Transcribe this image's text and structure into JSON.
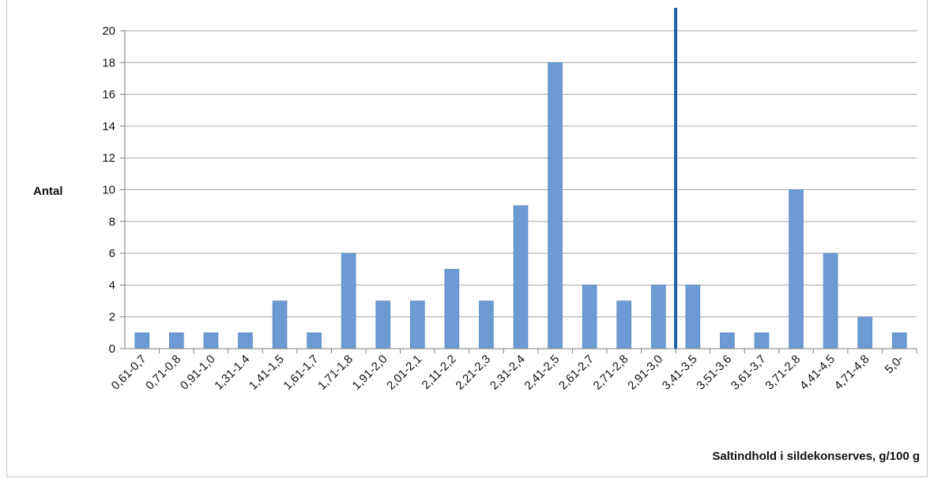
{
  "chart_data": {
    "type": "bar",
    "title": "",
    "xlabel": "Saltindhold i sildekonserves, g/100 g",
    "ylabel": "Antal",
    "ylim": [
      0,
      20
    ],
    "yticks": [
      0,
      2,
      4,
      6,
      8,
      10,
      12,
      14,
      16,
      18,
      20
    ],
    "grid": true,
    "legend": "none",
    "categories": [
      "0,61-0,7",
      "0,71-0,8",
      "0,91-1,0",
      "1,31-1.4",
      "1,41-1,5",
      "1,61-1,7",
      "1,71-1,8",
      "1,91-2,0",
      "2,01-2,1",
      "2,11-2,2",
      "2,21-2,3",
      "2,31-2,4",
      "2,41-2,5",
      "2,61-2,7",
      "2,71-2,8",
      "2,91-3,0",
      "3,41-3,5",
      "3,51-3,6",
      "3,61-3,7",
      "3,71-2,8",
      "4,41-4,5",
      "4,71-4,8",
      "5,0-"
    ],
    "values": [
      1,
      1,
      1,
      1,
      3,
      1,
      6,
      3,
      3,
      5,
      3,
      9,
      18,
      4,
      3,
      4,
      4,
      1,
      1,
      10,
      6,
      2,
      1
    ],
    "reference_line": {
      "after_category": "2,91-3,0",
      "color": "#1f5fae"
    },
    "colors": {
      "bar": "#6b9bd2",
      "bar_edge": "#4f81bd",
      "grid": "#a6a6a6",
      "axis": "#7f7f7f"
    }
  }
}
